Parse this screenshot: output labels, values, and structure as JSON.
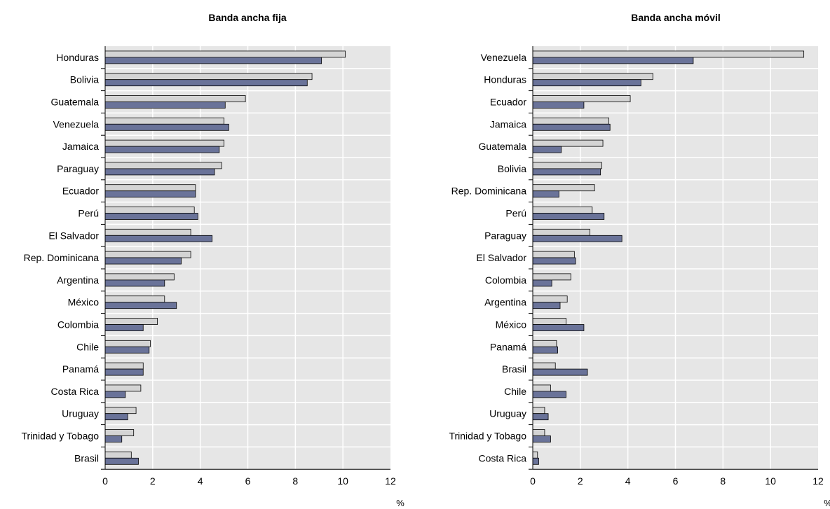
{
  "colors": {
    "light": "#d4d4d4",
    "dark": "#6a7399",
    "plot_bg": "#e6e6e6",
    "grid": "#ffffff",
    "axis": "#000000"
  },
  "chart_data": [
    {
      "type": "bar",
      "orientation": "horizontal",
      "title": "Banda ancha fija",
      "unit": "%",
      "xlim": [
        0,
        12
      ],
      "ticks": [
        "0",
        "2",
        "4",
        "6",
        "8",
        "10",
        "12"
      ],
      "categories": [
        "Honduras",
        "Bolivia",
        "Guatemala",
        "Venezuela",
        "Jamaica",
        "Paraguay",
        "Ecuador",
        "Perú",
        "El Salvador",
        "Rep. Dominicana",
        "Argentina",
        "México",
        "Colombia",
        "Chile",
        "Panamá",
        "Costa Rica",
        "Uruguay",
        "Trinidad y Tobago",
        "Brasil"
      ],
      "series": [
        {
          "color": "#d4d4d4",
          "values": [
            10.1,
            8.7,
            5.9,
            5.0,
            5.0,
            4.9,
            3.8,
            3.75,
            3.6,
            3.6,
            2.9,
            2.5,
            2.2,
            1.9,
            1.6,
            1.5,
            1.3,
            1.2,
            1.1
          ]
        },
        {
          "color": "#6a7399",
          "values": [
            9.1,
            8.5,
            5.05,
            5.2,
            4.8,
            4.6,
            3.8,
            3.9,
            4.5,
            3.2,
            2.5,
            3.0,
            1.6,
            1.85,
            1.6,
            0.85,
            0.95,
            0.7,
            1.4
          ]
        }
      ]
    },
    {
      "type": "bar",
      "orientation": "horizontal",
      "title": "Banda ancha móvil",
      "unit": "%",
      "xlim": [
        0,
        12
      ],
      "ticks": [
        "0",
        "2",
        "4",
        "6",
        "8",
        "10",
        "12"
      ],
      "categories": [
        "Venezuela",
        "Honduras",
        "Ecuador",
        "Jamaica",
        "Guatemala",
        "Bolivia",
        "Rep. Dominicana",
        "Perú",
        "Paraguay",
        "El Salvador",
        "Colombia",
        "Argentina",
        "México",
        "Panamá",
        "Brasil",
        "Chile",
        "Uruguay",
        "Trinidad y Tobago",
        "Costa Rica"
      ],
      "series": [
        {
          "color": "#d4d4d4",
          "values": [
            11.4,
            5.05,
            4.1,
            3.2,
            2.95,
            2.9,
            2.6,
            2.5,
            2.4,
            1.75,
            1.6,
            1.45,
            1.4,
            1.0,
            0.95,
            0.75,
            0.5,
            0.5,
            0.2
          ]
        },
        {
          "color": "#6a7399",
          "values": [
            6.75,
            4.55,
            2.15,
            3.25,
            1.2,
            2.85,
            1.1,
            3.0,
            3.75,
            1.8,
            0.8,
            1.15,
            2.15,
            1.05,
            2.3,
            1.4,
            0.65,
            0.75,
            0.25
          ]
        }
      ]
    }
  ]
}
